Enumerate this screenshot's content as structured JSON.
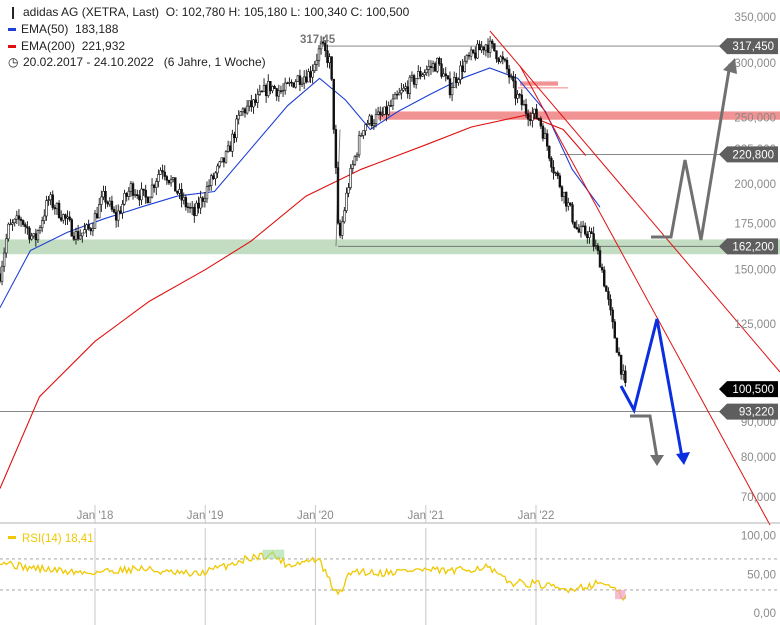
{
  "header": {
    "title": "adidas AG (XETRA, Last)",
    "ohlc": "O: 102,780   H: 105,180   L: 100,340   C: 100,500",
    "ema50_label": "EMA(50)",
    "ema50_value": "183,188",
    "ema200_label": "EMA(200)",
    "ema200_value": "221,932",
    "range": "20.02.2017 - 24.10.2022",
    "period": "(6 Jahre, 1 Woche)"
  },
  "colors": {
    "candle": "#111111",
    "ema50": "#1f3fd6",
    "ema200": "#e01010",
    "support_band": "#a8cfa8",
    "resistance_band": "#f08080",
    "trend_line": "#e01010",
    "level_line": "#777777",
    "projection_gray": "#707070",
    "projection_blue": "#0a2ee0",
    "rsi": "#f0c800",
    "label_bg": "#5e5e5e",
    "last_label_bg": "#000000"
  },
  "chart_data": {
    "type": "candlestick",
    "scale": "log",
    "ylim": [
      62000,
      360000
    ],
    "x_range": [
      "2017-02-20",
      "2022-10-24"
    ],
    "y_ticks": [
      "70,000",
      "80,000",
      "90,000",
      "100,000",
      "125,000",
      "150,000",
      "175,000",
      "200,000",
      "225,000",
      "250,000",
      "300,000",
      "350,000"
    ],
    "y_tick_values": [
      70,
      80,
      90,
      100,
      125,
      150,
      175,
      200,
      225,
      250,
      300,
      350
    ],
    "x_ticks": [
      "Jan '18",
      "Jan '19",
      "Jan '20",
      "Jan '21",
      "Jan '22"
    ],
    "x_tick_dates": [
      "2018-01-01",
      "2019-01-01",
      "2020-01-01",
      "2021-01-01",
      "2022-01-01"
    ],
    "annotations": {
      "high_label": "317,45",
      "levels": [
        {
          "label": "317,450",
          "value": 317.45
        },
        {
          "label": "220,800",
          "value": 220.8
        },
        {
          "label": "162,200",
          "value": 162.2
        },
        {
          "label": "100,500",
          "value": 100.5,
          "last": true
        },
        {
          "label": "93,220",
          "value": 93.22
        }
      ]
    },
    "price_path": [
      [
        "2017-02-20",
        148
      ],
      [
        "2017-03-20",
        172
      ],
      [
        "2017-05-01",
        178
      ],
      [
        "2017-06-15",
        165
      ],
      [
        "2017-08-01",
        190
      ],
      [
        "2017-09-15",
        180
      ],
      [
        "2017-11-01",
        168
      ],
      [
        "2017-12-15",
        172
      ],
      [
        "2018-02-01",
        192
      ],
      [
        "2018-03-10",
        178
      ],
      [
        "2018-05-01",
        198
      ],
      [
        "2018-06-20",
        190
      ],
      [
        "2018-08-10",
        212
      ],
      [
        "2018-10-15",
        190
      ],
      [
        "2018-11-25",
        180
      ],
      [
        "2019-01-10",
        198
      ],
      [
        "2019-03-15",
        220
      ],
      [
        "2019-05-01",
        255
      ],
      [
        "2019-06-15",
        262
      ],
      [
        "2019-08-01",
        278
      ],
      [
        "2019-09-15",
        272
      ],
      [
        "2019-11-01",
        285
      ],
      [
        "2019-12-15",
        290
      ],
      [
        "2020-01-20",
        317
      ],
      [
        "2020-02-20",
        300
      ],
      [
        "2020-03-18",
        162
      ],
      [
        "2020-04-20",
        200
      ],
      [
        "2020-06-10",
        245
      ],
      [
        "2020-08-15",
        252
      ],
      [
        "2020-10-15",
        272
      ],
      [
        "2020-12-15",
        290
      ],
      [
        "2021-02-10",
        300
      ],
      [
        "2021-03-20",
        275
      ],
      [
        "2021-05-10",
        300
      ],
      [
        "2021-07-20",
        320
      ],
      [
        "2021-08-20",
        312
      ],
      [
        "2021-09-25",
        295
      ],
      [
        "2021-10-25",
        270
      ],
      [
        "2021-12-01",
        255
      ],
      [
        "2022-01-10",
        250
      ],
      [
        "2022-03-01",
        210
      ],
      [
        "2022-04-20",
        185
      ],
      [
        "2022-05-20",
        170
      ],
      [
        "2022-06-25",
        170
      ],
      [
        "2022-08-01",
        155
      ],
      [
        "2022-09-10",
        125
      ],
      [
        "2022-10-24",
        100.5
      ]
    ],
    "ema50": [
      [
        "2017-02-20",
        132
      ],
      [
        "2017-06-01",
        160
      ],
      [
        "2017-10-01",
        170
      ],
      [
        "2018-02-01",
        178
      ],
      [
        "2018-06-01",
        185
      ],
      [
        "2018-10-01",
        192
      ],
      [
        "2019-02-01",
        195
      ],
      [
        "2019-06-01",
        225
      ],
      [
        "2019-10-01",
        260
      ],
      [
        "2020-01-15",
        285
      ],
      [
        "2020-04-10",
        265
      ],
      [
        "2020-07-01",
        240
      ],
      [
        "2020-10-01",
        255
      ],
      [
        "2021-01-15",
        270
      ],
      [
        "2021-05-01",
        285
      ],
      [
        "2021-08-01",
        295
      ],
      [
        "2021-11-01",
        285
      ],
      [
        "2022-02-01",
        255
      ],
      [
        "2022-05-01",
        210
      ],
      [
        "2022-08-01",
        185
      ]
    ],
    "ema200": [
      [
        "2017-02-20",
        72
      ],
      [
        "2017-07-01",
        98
      ],
      [
        "2018-01-01",
        118
      ],
      [
        "2018-07-01",
        135
      ],
      [
        "2019-01-01",
        150
      ],
      [
        "2019-06-01",
        165
      ],
      [
        "2019-12-01",
        192
      ],
      [
        "2020-06-01",
        210
      ],
      [
        "2021-01-01",
        228
      ],
      [
        "2021-06-01",
        242
      ],
      [
        "2021-12-01",
        252
      ],
      [
        "2022-04-01",
        240
      ],
      [
        "2022-06-15",
        220
      ]
    ],
    "support_band": [
      158,
      166
    ],
    "resistance_band": [
      248,
      255
    ],
    "resistance_band_upper": [
      278,
      282
    ],
    "rsi": {
      "label": "RSI(14)",
      "value": "18,41",
      "ylim": [
        -5,
        110
      ],
      "y_ticks": [
        "0,00",
        "50,00",
        "100,00"
      ],
      "y_tick_values": [
        0,
        50,
        100
      ],
      "levels": [
        70,
        30
      ],
      "path": [
        [
          "2017-02-20",
          68
        ],
        [
          "2017-05-01",
          60
        ],
        [
          "2017-09-01",
          55
        ],
        [
          "2017-12-01",
          52
        ],
        [
          "2018-03-01",
          55
        ],
        [
          "2018-06-01",
          58
        ],
        [
          "2018-09-01",
          52
        ],
        [
          "2018-12-01",
          50
        ],
        [
          "2019-03-01",
          60
        ],
        [
          "2019-06-01",
          72
        ],
        [
          "2019-08-15",
          76
        ],
        [
          "2019-10-01",
          62
        ],
        [
          "2020-01-10",
          70
        ],
        [
          "2020-03-15",
          22
        ],
        [
          "2020-05-01",
          55
        ],
        [
          "2020-08-01",
          52
        ],
        [
          "2020-12-01",
          56
        ],
        [
          "2021-04-01",
          54
        ],
        [
          "2021-07-20",
          60
        ],
        [
          "2021-10-01",
          40
        ],
        [
          "2022-01-01",
          38
        ],
        [
          "2022-04-01",
          30
        ],
        [
          "2022-06-15",
          35
        ],
        [
          "2022-08-15",
          40
        ],
        [
          "2022-10-24",
          18.41
        ]
      ]
    }
  }
}
